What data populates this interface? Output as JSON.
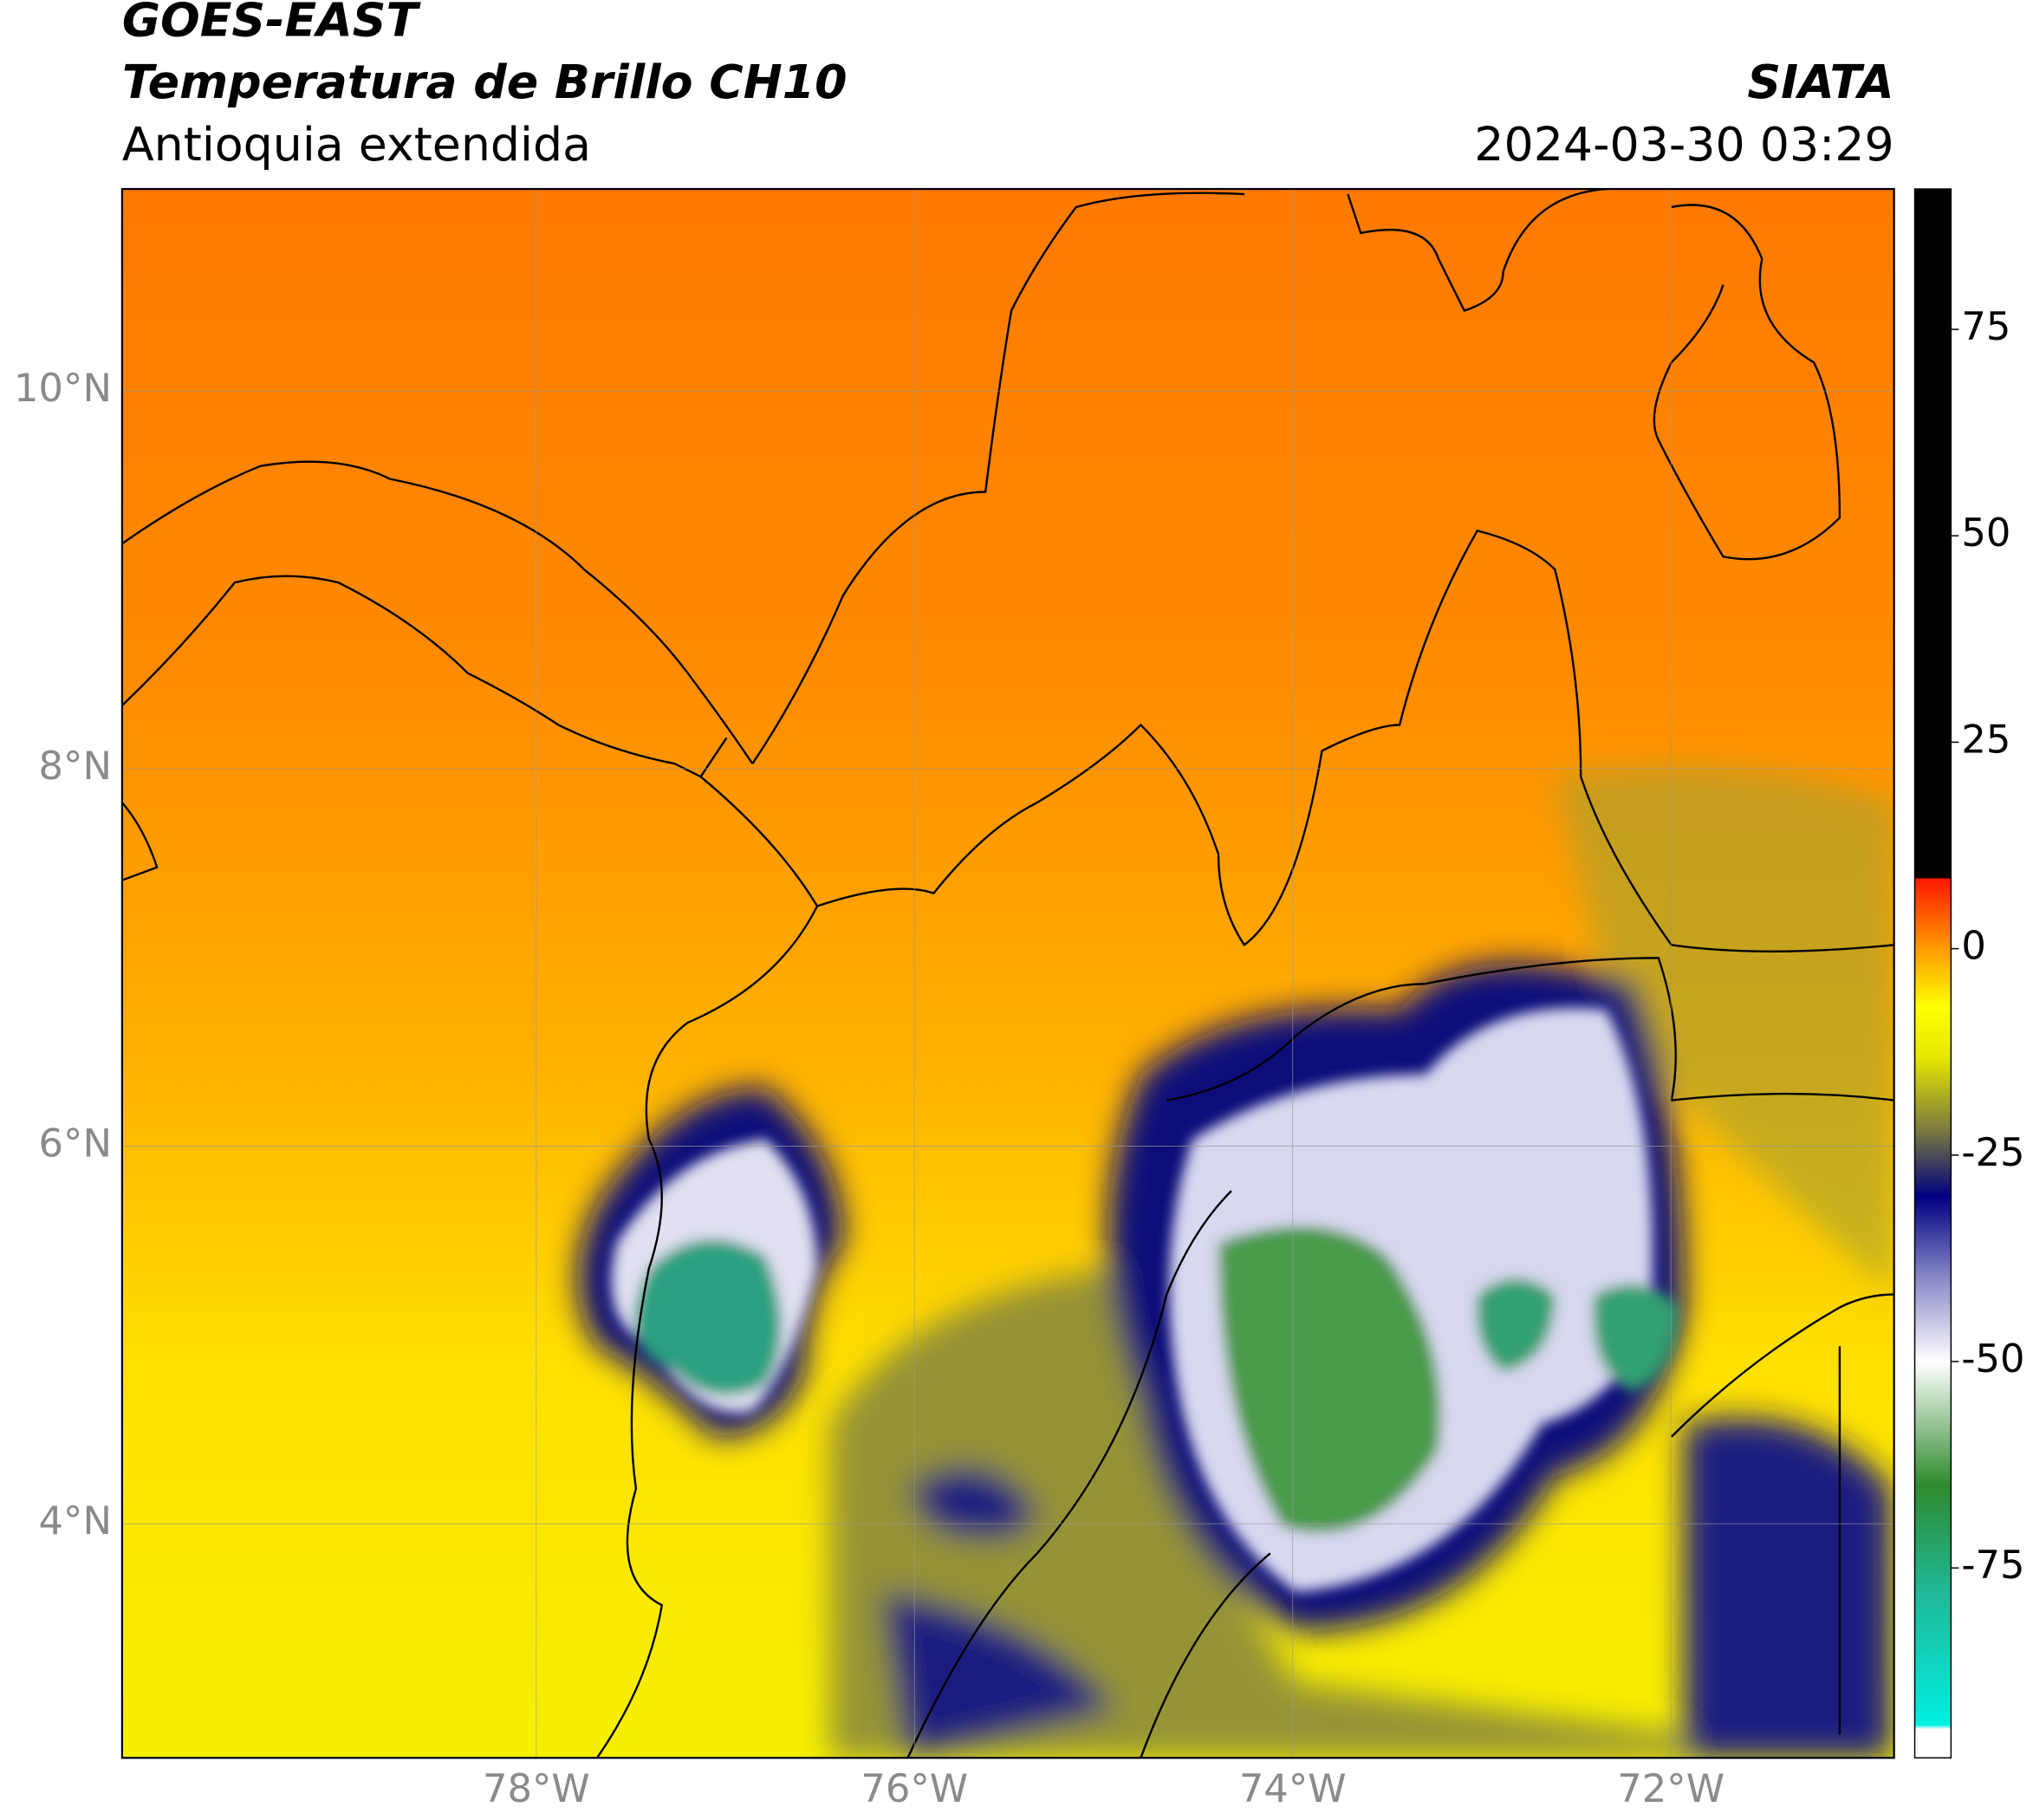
{
  "header": {
    "title": "GOES-EAST",
    "subtitle": "Temperatura de Brillo CH10",
    "region": "Antioquia extendida",
    "source": "SIATA",
    "datetime": "2024-03-30 03:29"
  },
  "map": {
    "xlim": [
      -80.19,
      -70.82
    ],
    "ylim": [
      2.76,
      11.07
    ],
    "xticks": [
      {
        "value": -78,
        "label": "78°W"
      },
      {
        "value": -76,
        "label": "76°W"
      },
      {
        "value": -74,
        "label": "74°W"
      },
      {
        "value": -72,
        "label": "72°W"
      }
    ],
    "yticks": [
      {
        "value": 10,
        "label": "10°N"
      },
      {
        "value": 8,
        "label": "8°N"
      },
      {
        "value": 6,
        "label": "6°N"
      },
      {
        "value": 4,
        "label": "4°N"
      }
    ],
    "grid": true
  },
  "colorbar": {
    "lim": [
      -98,
      92
    ],
    "ticks": [
      75,
      50,
      25,
      0,
      -25,
      -50,
      -75
    ],
    "stops": [
      {
        "value": -98,
        "color": "#ffffff"
      },
      {
        "value": -94.5,
        "color": "#ffffff"
      },
      {
        "value": -94,
        "color": "#00f0e0"
      },
      {
        "value": -78,
        "color": "#20b898"
      },
      {
        "value": -65,
        "color": "#2e8a2e"
      },
      {
        "value": -50,
        "color": "#ffffff"
      },
      {
        "value": -40,
        "color": "#8a8ac8"
      },
      {
        "value": -30,
        "color": "#000080"
      },
      {
        "value": -22,
        "color": "#7a7a40"
      },
      {
        "value": -13,
        "color": "#e8e800"
      },
      {
        "value": -7,
        "color": "#ffff00"
      },
      {
        "value": 0,
        "color": "#ff9a00"
      },
      {
        "value": 8.5,
        "color": "#ff1800"
      },
      {
        "value": 8.5,
        "color": "#000000"
      },
      {
        "value": 92,
        "color": "#000000"
      }
    ]
  }
}
